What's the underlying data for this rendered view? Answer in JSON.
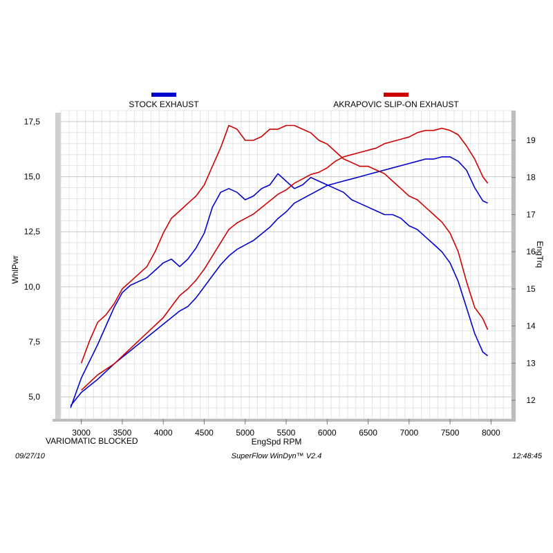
{
  "footer": {
    "date": "09/27/10",
    "software": "SuperFlow WinDyn™  V2.4",
    "time": "12:48:45"
  },
  "chart_data": {
    "type": "line",
    "annotation": "VARIOMATIC BLOCKED",
    "xlabel": "EngSpd  RPM",
    "ylabel_left": "WhlPwr",
    "ylabel_right": "EngTrq",
    "xlim": [
      2750,
      8250
    ],
    "ylim_left": [
      4.0,
      18.0
    ],
    "ylim_right": [
      11.5,
      19.8
    ],
    "x_ticks": [
      "3000",
      "3500",
      "4000",
      "4500",
      "5000",
      "5500",
      "6000",
      "6500",
      "7000",
      "7500",
      "8000"
    ],
    "y_left_ticks": [
      "5,0",
      "7,5",
      "10,0",
      "12,5",
      "15,0",
      "17,5"
    ],
    "y_right_ticks": [
      "12",
      "13",
      "14",
      "15",
      "16",
      "17",
      "18",
      "19"
    ],
    "grid": true,
    "legend": [
      {
        "name": "STOCK EXHAUST",
        "color": "#0000cc"
      },
      {
        "name": "AKRAPOVIC SLIP-ON EXHAUST",
        "color": "#cc0000"
      }
    ],
    "series": [
      {
        "name": "STOCK EXHAUST",
        "measure": "WhlPwr",
        "axis": "left",
        "color": "#0000cc",
        "x": [
          2870,
          3000,
          3200,
          3400,
          3600,
          3800,
          4000,
          4100,
          4200,
          4300,
          4400,
          4500,
          4600,
          4700,
          4800,
          4900,
          5000,
          5100,
          5200,
          5300,
          5400,
          5500,
          5600,
          5700,
          5800,
          5900,
          6000,
          6100,
          6200,
          6300,
          6400,
          6500,
          6600,
          6700,
          6800,
          6900,
          7000,
          7100,
          7200,
          7300,
          7400,
          7500,
          7600,
          7700,
          7800,
          7900,
          7960
        ],
        "y": [
          4.6,
          5.2,
          5.8,
          6.5,
          7.1,
          7.7,
          8.3,
          8.6,
          8.9,
          9.1,
          9.5,
          10.0,
          10.5,
          11.0,
          11.4,
          11.7,
          11.9,
          12.1,
          12.4,
          12.7,
          13.1,
          13.4,
          13.8,
          14.0,
          14.2,
          14.4,
          14.6,
          14.7,
          14.8,
          14.9,
          15.0,
          15.1,
          15.2,
          15.3,
          15.4,
          15.5,
          15.6,
          15.7,
          15.8,
          15.8,
          15.9,
          15.9,
          15.7,
          15.3,
          14.5,
          13.9,
          13.8
        ]
      },
      {
        "name": "STOCK EXHAUST",
        "measure": "EngTrq",
        "axis": "right",
        "color": "#0000cc",
        "x": [
          2870,
          3000,
          3200,
          3400,
          3500,
          3600,
          3800,
          3900,
          4000,
          4100,
          4200,
          4300,
          4400,
          4500,
          4600,
          4700,
          4800,
          4900,
          5000,
          5100,
          5200,
          5300,
          5400,
          5500,
          5600,
          5700,
          5800,
          5900,
          6000,
          6100,
          6200,
          6300,
          6400,
          6500,
          6600,
          6700,
          6800,
          6900,
          7000,
          7100,
          7200,
          7300,
          7400,
          7500,
          7600,
          7700,
          7800,
          7900,
          7960
        ],
        "y": [
          11.8,
          12.6,
          13.5,
          14.5,
          14.9,
          15.1,
          15.3,
          15.5,
          15.7,
          15.8,
          15.6,
          15.8,
          16.1,
          16.5,
          17.2,
          17.6,
          17.7,
          17.6,
          17.4,
          17.5,
          17.7,
          17.8,
          18.1,
          17.9,
          17.7,
          17.8,
          18.0,
          17.9,
          17.8,
          17.7,
          17.6,
          17.4,
          17.3,
          17.2,
          17.1,
          17.0,
          17.0,
          16.9,
          16.7,
          16.6,
          16.4,
          16.2,
          16.0,
          15.7,
          15.2,
          14.5,
          13.8,
          13.3,
          13.2
        ]
      },
      {
        "name": "AKRAPOVIC SLIP-ON EXHAUST",
        "measure": "WhlPwr",
        "axis": "left",
        "color": "#cc0000",
        "x": [
          3000,
          3200,
          3400,
          3600,
          3800,
          4000,
          4100,
          4200,
          4300,
          4400,
          4500,
          4600,
          4700,
          4800,
          4900,
          5000,
          5100,
          5200,
          5300,
          5400,
          5500,
          5600,
          5700,
          5800,
          5900,
          6000,
          6100,
          6200,
          6300,
          6400,
          6500,
          6600,
          6700,
          6800,
          6900,
          7000,
          7100,
          7200,
          7300,
          7400,
          7500,
          7600,
          7700,
          7800,
          7900,
          7960
        ],
        "y": [
          5.3,
          6.0,
          6.5,
          7.2,
          7.9,
          8.6,
          9.1,
          9.6,
          9.9,
          10.3,
          10.8,
          11.4,
          12.0,
          12.6,
          12.9,
          13.1,
          13.3,
          13.6,
          13.9,
          14.2,
          14.4,
          14.7,
          14.9,
          15.1,
          15.2,
          15.4,
          15.7,
          15.9,
          16.0,
          16.1,
          16.2,
          16.3,
          16.5,
          16.6,
          16.7,
          16.8,
          17.0,
          17.1,
          17.1,
          17.2,
          17.1,
          16.9,
          16.4,
          15.8,
          15.0,
          14.7
        ]
      },
      {
        "name": "AKRAPOVIC SLIP-ON EXHAUST",
        "measure": "EngTrq",
        "axis": "right",
        "color": "#cc0000",
        "x": [
          3000,
          3100,
          3200,
          3300,
          3400,
          3500,
          3600,
          3800,
          3900,
          4000,
          4100,
          4200,
          4300,
          4400,
          4500,
          4600,
          4700,
          4800,
          4900,
          5000,
          5100,
          5200,
          5300,
          5400,
          5500,
          5600,
          5700,
          5800,
          5900,
          6000,
          6100,
          6200,
          6300,
          6400,
          6500,
          6600,
          6700,
          6800,
          6900,
          7000,
          7100,
          7200,
          7300,
          7400,
          7500,
          7600,
          7700,
          7800,
          7900,
          7960
        ],
        "y": [
          13.0,
          13.6,
          14.1,
          14.3,
          14.6,
          15.0,
          15.2,
          15.6,
          16.0,
          16.5,
          16.9,
          17.1,
          17.3,
          17.5,
          17.8,
          18.3,
          18.8,
          19.4,
          19.3,
          19.0,
          19.0,
          19.1,
          19.3,
          19.3,
          19.4,
          19.4,
          19.3,
          19.2,
          19.0,
          18.9,
          18.7,
          18.5,
          18.4,
          18.3,
          18.3,
          18.2,
          18.1,
          17.9,
          17.7,
          17.5,
          17.4,
          17.2,
          17.0,
          16.8,
          16.5,
          16.0,
          15.2,
          14.5,
          14.2,
          13.9
        ]
      }
    ]
  }
}
